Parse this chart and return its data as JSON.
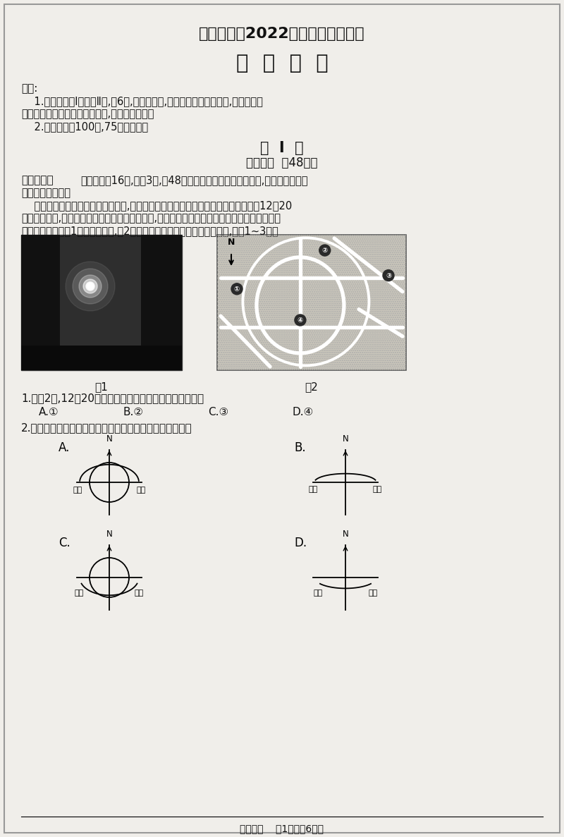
{
  "title1": "德阳市高中2022级第一次诊断考试",
  "title2": "地  理  试  卷",
  "note_title": "说明:",
  "note1": "    1.本试卷分第Ⅰ卷和第Ⅱ卷,共6页,考生作答时,须将答案答在答题卡上,在本试卷、",
  "note2": "草稿纸上答题无效。考试结束后,将答题卡交回。",
  "note3": "    2.本试卷满分100分,75分钟完卷。",
  "section_title": "第  Ⅰ  卷",
  "section_sub": "（选择题  共48分）",
  "part1_title": "一、选择题",
  "part1_desc": "（本大题共16题,每题3分,共48分。在每题给出的四个选项中,只有一项是最符",
  "part1_desc2": "合题目要求的。）",
  "para1": "    悬日是指在一年中某些特定的时段,太阳从街道的中间地面升起或落下的自然现象。12月20",
  "para2": "日的日出时刻,成都某街道出现了壮观的悬日景观,两侧高大的楼宇与中间升起的红日组成了城市",
  "para3": "观丽的风景线。图1为悬日景观图,图2为该城市部分街道走向示意图。据此,完成1~3题。",
  "fig1_label": "图1",
  "fig2_label": "图2",
  "q1": "1.在图2中,12月20日该城市观看到悬日日出景观的位置是",
  "q1_opts_a": "A.①",
  "q1_opts_b": "B.②",
  "q1_opts_c": "C.③",
  "q1_opts_d": "D.④",
  "q2": "2.推测该日该城市太阳视运动轨迹地平面投影示意图大致为",
  "sunrise_label": "日出",
  "sunset_label": "日落",
  "footer": "地理一诊    第1页（共6页）",
  "bg_color": "#f0eeea",
  "text_color": "#111111"
}
